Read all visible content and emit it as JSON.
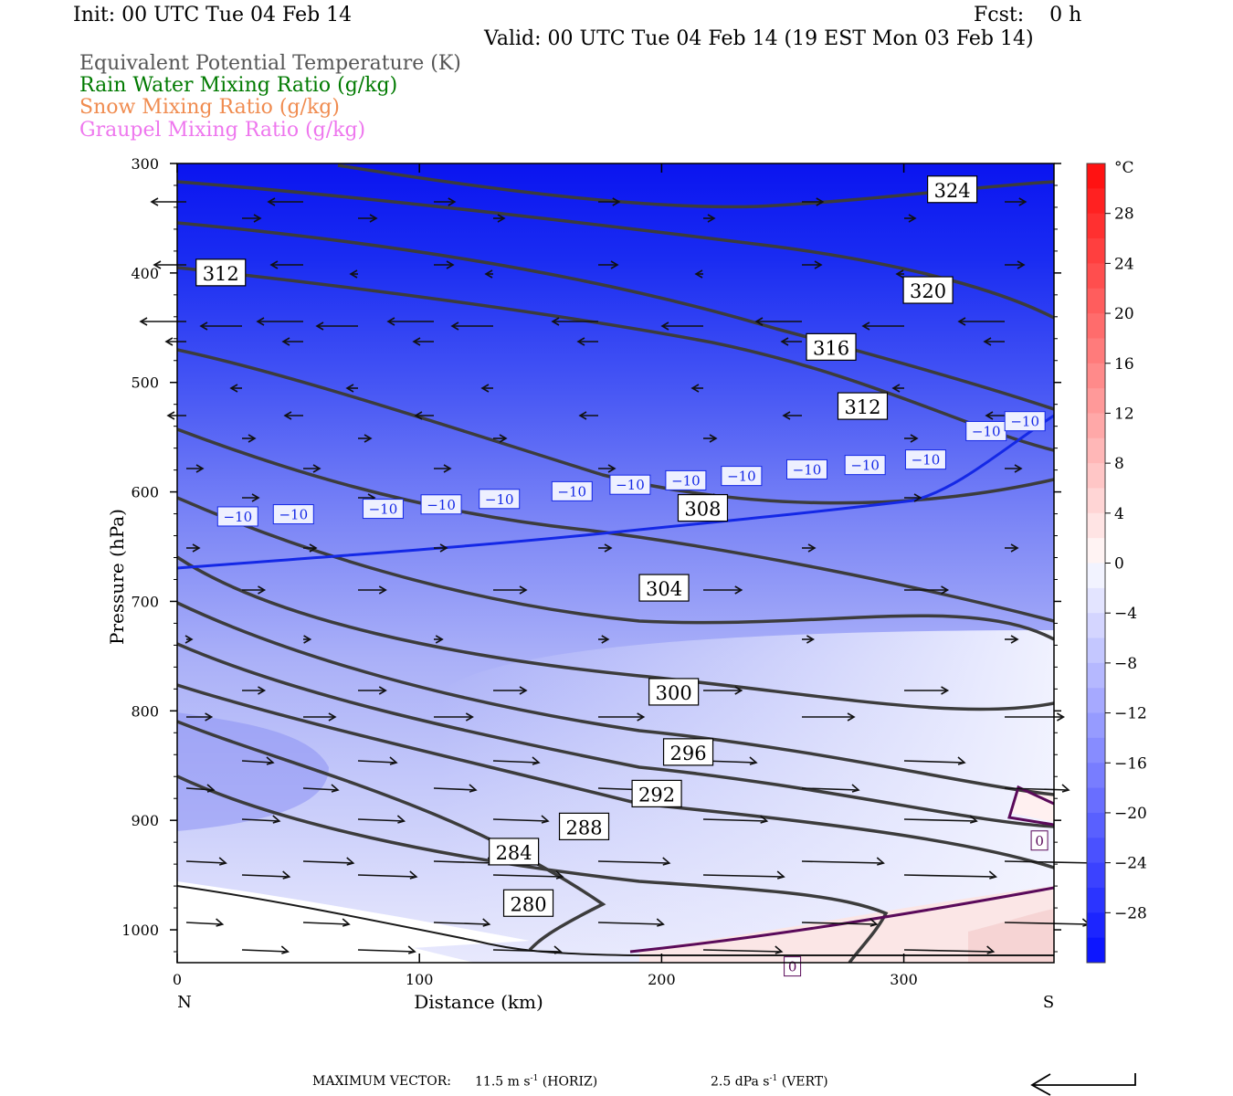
{
  "header": {
    "init": "Init: 00 UTC Tue 04 Feb 14",
    "fcst": "Fcst:    0 h",
    "valid": "Valid: 00 UTC Tue 04 Feb 14 (19 EST Mon 03 Feb 14)",
    "fields": [
      {
        "label": "Equivalent Potential Temperature (K)",
        "color": "#555555"
      },
      {
        "label": "Rain Water Mixing Ratio (g/kg)",
        "color": "#007a00"
      },
      {
        "label": "Snow Mixing Ratio (g/kg)",
        "color": "#f08c50"
      },
      {
        "label": "Graupel Mixing Ratio (g/kg)",
        "color": "#ee77ee"
      }
    ]
  },
  "footer": {
    "max_vector_label": "MAXIMUM VECTOR:",
    "horiz": "11.5 m s",
    "horiz_exp": "-1",
    "horiz_unit": "(HORIZ)",
    "vert": "2.5 dPa s",
    "vert_exp": "-1",
    "vert_unit": "(VERT)"
  },
  "chart_data": {
    "type": "cross-section",
    "xlabel": "Distance (km)",
    "ylabel": "Pressure (hPa)",
    "x_end_labels": {
      "left": "N",
      "right": "S"
    },
    "xlim": [
      0,
      362
    ],
    "ylim": [
      300,
      1030
    ],
    "x_ticks": [
      0,
      100,
      200,
      300
    ],
    "y_ticks": [
      300,
      400,
      500,
      600,
      700,
      800,
      900,
      1000
    ],
    "colorbar": {
      "unit": "°C",
      "labels": [
        28,
        24,
        20,
        16,
        12,
        8,
        4,
        0,
        -4,
        -8,
        -12,
        -16,
        -20,
        -24,
        -28
      ],
      "range": [
        -32,
        32
      ]
    },
    "theta_e_contours": [
      {
        "value": 324,
        "label_at": [
          320,
          324
        ]
      },
      {
        "value": 320,
        "label_at": [
          310,
          416
        ]
      },
      {
        "value": 316,
        "label_at": [
          270,
          468
        ]
      },
      {
        "value": 312,
        "label_at": [
          283,
          522
        ]
      },
      {
        "value": 312,
        "label_at": [
          18,
          400
        ]
      },
      {
        "value": 308,
        "label_at": [
          217,
          615
        ]
      },
      {
        "value": 304,
        "label_at": [
          201,
          688
        ]
      },
      {
        "value": 300,
        "label_at": [
          205,
          783
        ]
      },
      {
        "value": 296,
        "label_at": [
          211,
          838
        ]
      },
      {
        "value": 292,
        "label_at": [
          198,
          876
        ]
      },
      {
        "value": 288,
        "label_at": [
          168,
          906
        ]
      },
      {
        "value": 284,
        "label_at": [
          139,
          929
        ]
      },
      {
        "value": 280,
        "label_at": [
          145,
          976
        ]
      }
    ],
    "temperature_contours": [
      {
        "value": -10,
        "color": "#1428e6"
      },
      {
        "value": 0,
        "color": "#5a0a5a"
      }
    ],
    "contour_labels": [
      "324",
      "320",
      "316",
      "312",
      "312",
      "308",
      "304",
      "300",
      "296",
      "292",
      "288",
      "284",
      "280"
    ],
    "temp_labels": [
      "-10",
      "0"
    ]
  }
}
